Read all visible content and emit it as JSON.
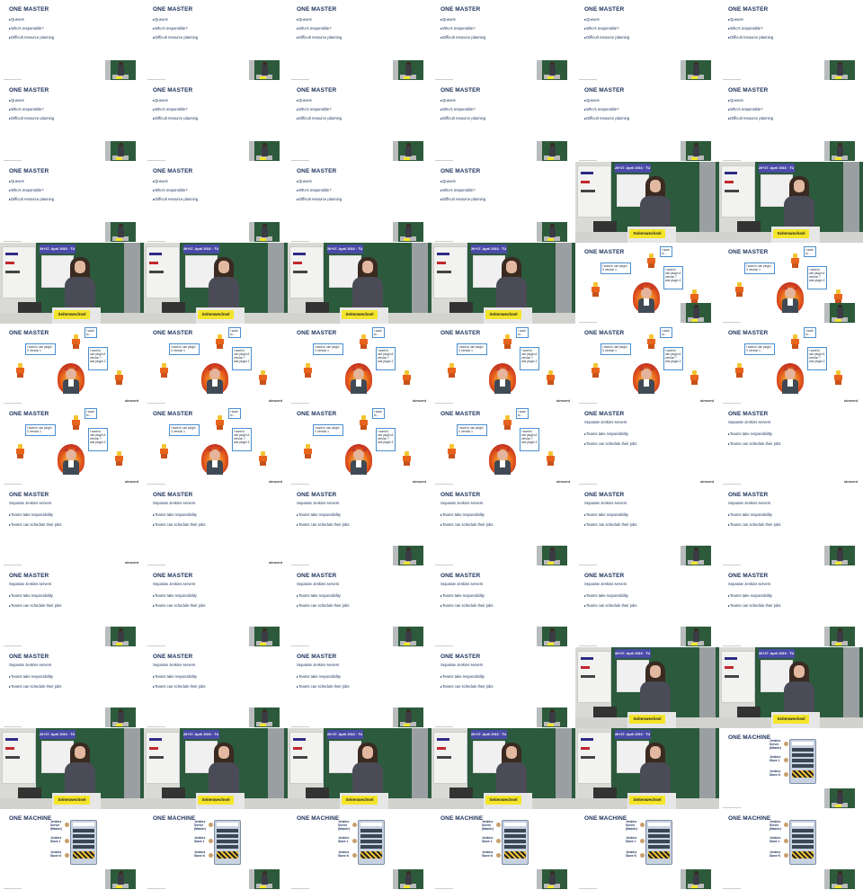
{
  "grid": {
    "columns": 6,
    "rows": 11
  },
  "slide_text": {
    "one_master": "ONE MASTER",
    "one_machine": "ONE MACHINE",
    "problems": [
      "Queues",
      "Who's responsible?",
      "Difficult resource planning"
    ],
    "separate_heading": "Separate Jenkins servers",
    "separate_items": [
      "Teams take responsibility",
      "Teams can schedule their jobs"
    ],
    "bubble_a": "I want to use plugin X version 1",
    "bubble_b": "I want to…",
    "bubble_c": "I want to use plugin A version 7 and plugin Z",
    "machine_labels": [
      "Jenkins Server (Master)",
      "Jenkins Slave 1",
      "Jenkins Slave N"
    ],
    "video_banner": "26+27. April 2016 · TU Graz",
    "video_sign": "Seitenwechsel",
    "logo": "simcent"
  },
  "tiles": [
    "master-problems",
    "master-problems",
    "master-problems",
    "master-problems",
    "master-problems",
    "master-problems",
    "master-problems",
    "master-problems",
    "master-problems",
    "master-problems",
    "master-problems",
    "master-problems",
    "master-problems",
    "master-problems",
    "master-problems",
    "master-problems",
    "video",
    "video",
    "video",
    "video",
    "video",
    "video",
    "lego",
    "lego",
    "lego",
    "lego",
    "lego",
    "lego",
    "lego",
    "lego",
    "lego",
    "lego",
    "lego",
    "lego",
    "master-separate",
    "master-separate",
    "master-separate",
    "master-separate",
    "master-separate",
    "master-separate",
    "master-separate",
    "master-separate",
    "master-separate",
    "master-separate",
    "master-separate",
    "master-separate",
    "master-separate",
    "master-separate",
    "master-separate",
    "master-separate",
    "master-separate",
    "master-separate",
    "video",
    "video",
    "video",
    "video",
    "video",
    "video",
    "video",
    "machine",
    "machine",
    "machine",
    "machine",
    "machine",
    "machine",
    "machine"
  ],
  "lego_logo_tiles": [
    24,
    25,
    26,
    27,
    28,
    29,
    30,
    31,
    32,
    33,
    34,
    35,
    36
  ],
  "pip_tiles_except": []
}
